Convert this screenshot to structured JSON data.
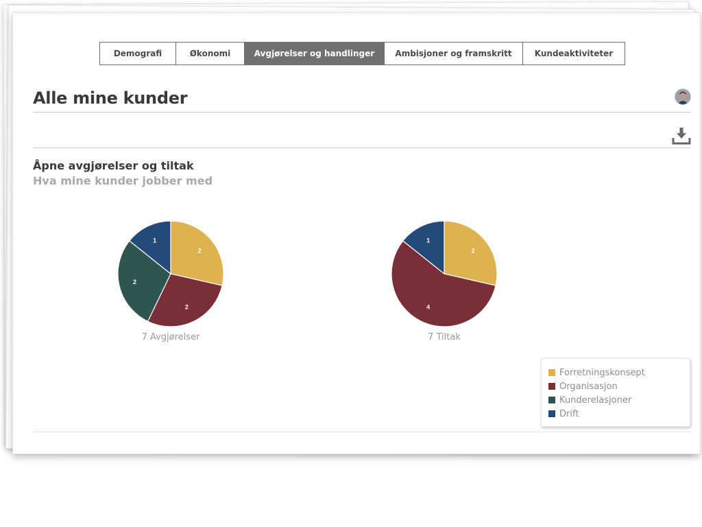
{
  "tabs": [
    {
      "label": "Demografi",
      "active": false
    },
    {
      "label": "Økonomi",
      "active": false
    },
    {
      "label": "Avgjørelser og handlinger",
      "active": true
    },
    {
      "label": "Ambisjoner og framskritt",
      "active": false
    },
    {
      "label": "Kundeaktiviteter",
      "active": false
    }
  ],
  "page": {
    "title": "Alle mine kunder"
  },
  "section": {
    "title": "Åpne avgjørelser og tiltak",
    "subtitle": "Hva mine kunder jobber med"
  },
  "icons": {
    "avatar": "user-avatar",
    "download": "download-icon"
  },
  "colors": {
    "Forretningskonsept": "#DDB24F",
    "Organisasjon": "#7A2E38",
    "Kunderelasjoner": "#2F5550",
    "Drift": "#244A7A"
  },
  "chart_data": [
    {
      "type": "pie",
      "caption": "7 Avgjørelser",
      "slices": [
        {
          "label": "Forretningskonsept",
          "value": 2
        },
        {
          "label": "Organisasjon",
          "value": 2
        },
        {
          "label": "Kunderelasjoner",
          "value": 2
        },
        {
          "label": "Drift",
          "value": 1
        }
      ]
    },
    {
      "type": "pie",
      "caption": "7 Tiltak",
      "slices": [
        {
          "label": "Forretningskonsept",
          "value": 2
        },
        {
          "label": "Organisasjon",
          "value": 4
        },
        {
          "label": "Kunderelasjoner",
          "value": 0
        },
        {
          "label": "Drift",
          "value": 1
        }
      ]
    }
  ],
  "legend": {
    "placement": "bottom-right",
    "items": [
      "Forretningskonsept",
      "Organisasjon",
      "Kunderelasjoner",
      "Drift"
    ]
  }
}
